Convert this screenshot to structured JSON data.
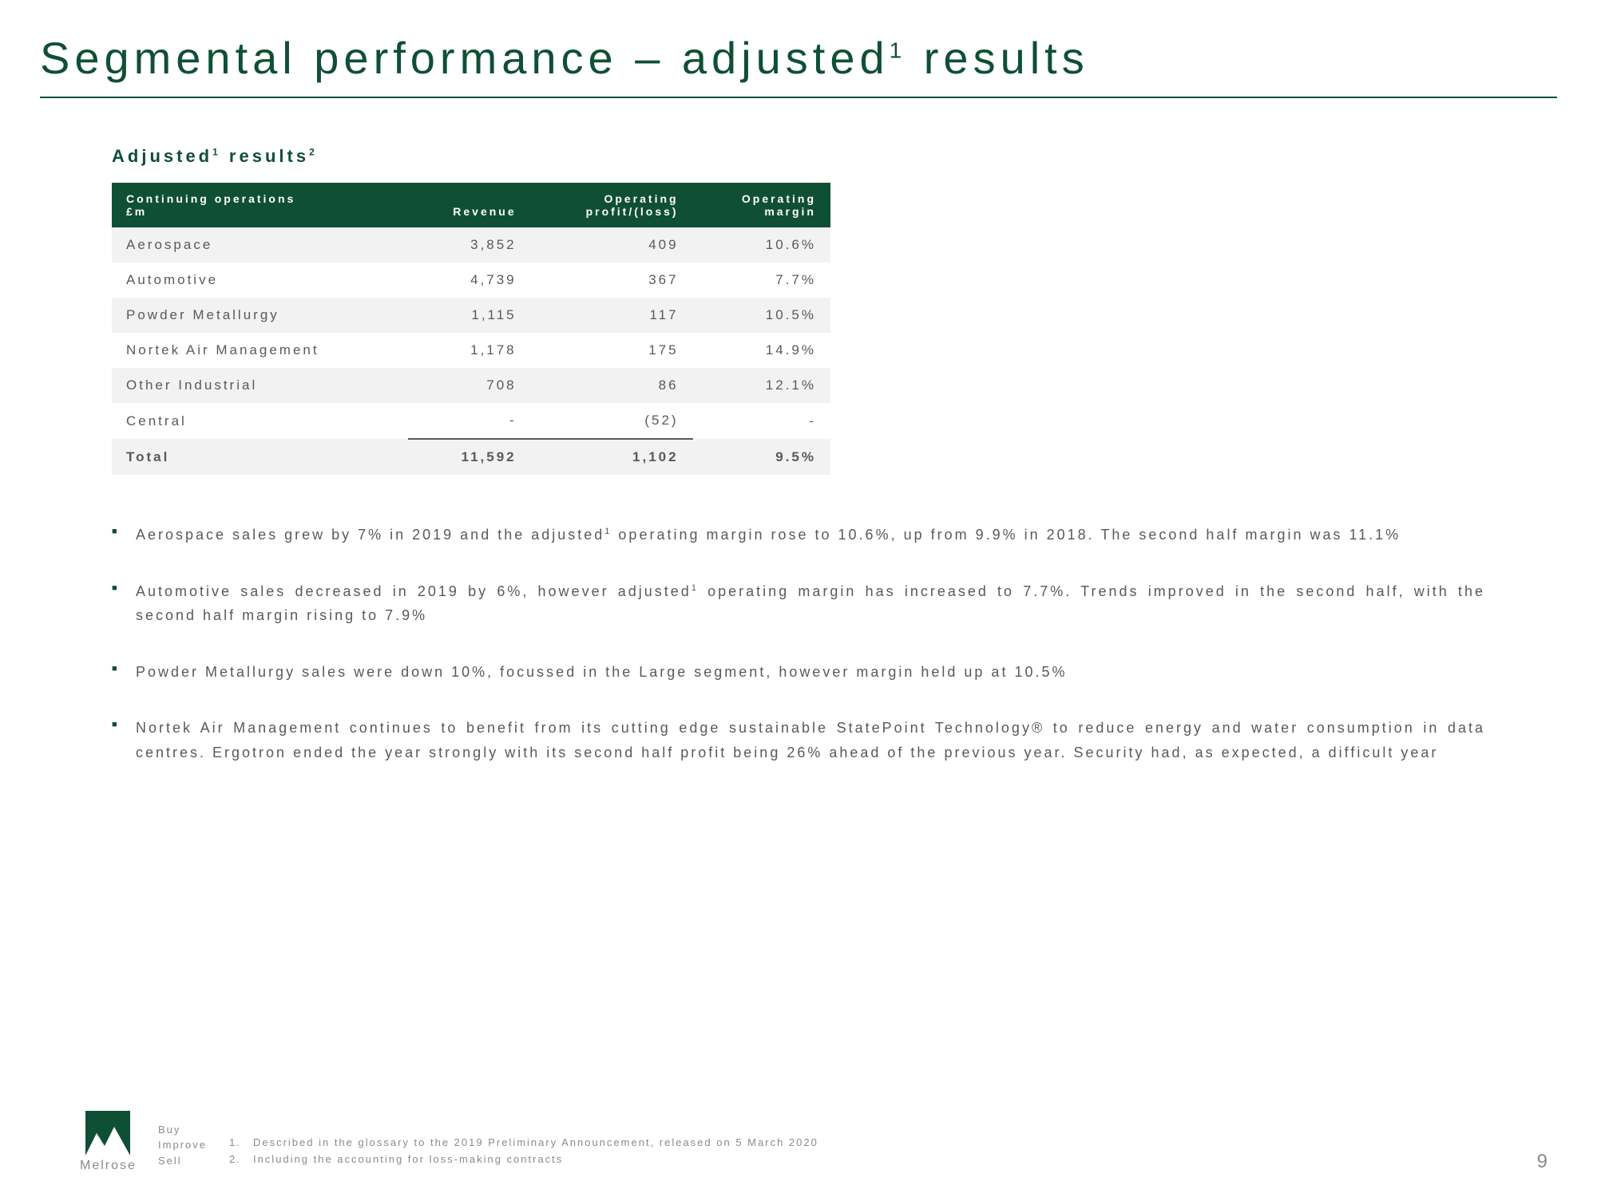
{
  "colors": {
    "brand_green": "#0f4f35",
    "text_grey": "#595959",
    "row_alt": "#f2f2f2",
    "footer_grey": "#8a8a8a",
    "background": "#ffffff"
  },
  "typography": {
    "title_fontsize": 56,
    "title_letter_spacing": 6,
    "subhead_fontsize": 22,
    "table_fontsize": 17,
    "bullet_fontsize": 18,
    "footnote_fontsize": 13
  },
  "title": {
    "pre": "Segmental performance – adjusted",
    "sup": "1",
    "post": " results"
  },
  "subhead": {
    "text": "Adjusted",
    "sup1": "1",
    "mid": " results",
    "sup2": "2"
  },
  "table": {
    "type": "table",
    "col_widths_pct": [
      44,
      18,
      20,
      18
    ],
    "header": {
      "c0a": "Continuing operations",
      "c0b": "£m",
      "c1": "Revenue",
      "c2a": "Operating",
      "c2b": "profit/(loss)",
      "c3a": "Operating",
      "c3b": "margin"
    },
    "rows": [
      {
        "alt": true,
        "label": "Aerospace",
        "revenue": "3,852",
        "profit": "409",
        "margin": "10.6%"
      },
      {
        "alt": false,
        "label": "Automotive",
        "revenue": "4,739",
        "profit": "367",
        "margin": "7.7%"
      },
      {
        "alt": true,
        "label": "Powder Metallurgy",
        "revenue": "1,115",
        "profit": "117",
        "margin": "10.5%"
      },
      {
        "alt": false,
        "label": "Nortek Air Management",
        "revenue": "1,178",
        "profit": "175",
        "margin": "14.9%"
      },
      {
        "alt": true,
        "label": "Other Industrial",
        "revenue": "708",
        "profit": "86",
        "margin": "12.1%"
      },
      {
        "alt": false,
        "label": "Central",
        "revenue": "-",
        "profit": "(52)",
        "margin": "-"
      }
    ],
    "total": {
      "label": "Total",
      "revenue": "11,592",
      "profit": "1,102",
      "margin": "9.5%"
    }
  },
  "bullets": [
    {
      "pre": "Aerospace sales grew by 7% in 2019 and the adjusted",
      "sup": "1",
      "post": " operating margin rose to 10.6%, up from 9.9% in 2018. The second half margin was 11.1%"
    },
    {
      "pre": "Automotive sales decreased in 2019 by 6%, however adjusted",
      "sup": "1",
      "post": " operating margin has increased to 7.7%. Trends improved in the second half, with the second half margin rising to 7.9%"
    },
    {
      "pre": "Powder Metallurgy sales were down 10%, focussed in the Large segment, however margin held up at 10.5%",
      "sup": "",
      "post": ""
    },
    {
      "pre": "Nortek Air Management continues to benefit from its cutting edge sustainable StatePoint Technology® to reduce energy and water consumption in data centres. Ergotron ended the year strongly with its second half profit being 26% ahead of the previous year. Security had, as expected, a difficult year",
      "sup": "",
      "post": ""
    }
  ],
  "footer": {
    "logo_name": "Melrose",
    "tagline": [
      "Buy",
      "Improve",
      "Sell"
    ],
    "footnotes": [
      {
        "num": "1.",
        "text": "Described in the glossary to the 2019 Preliminary Announcement, released on 5 March 2020"
      },
      {
        "num": "2.",
        "text": "Including the accounting for loss-making contracts"
      }
    ],
    "page_number": "9"
  }
}
